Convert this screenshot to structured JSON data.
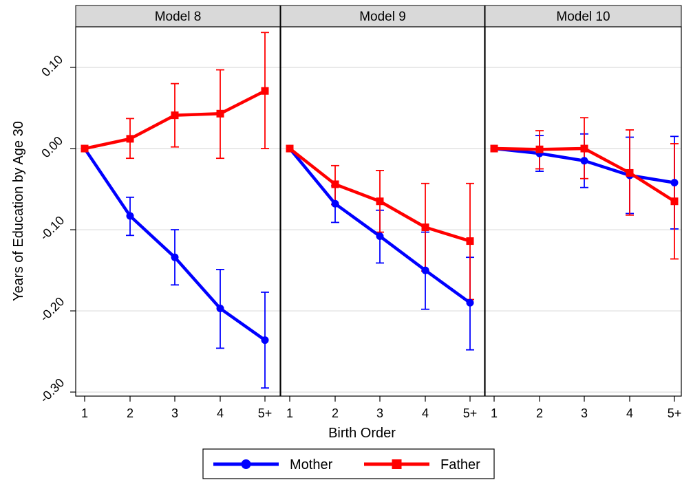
{
  "chart_data": {
    "type": "line",
    "ylabel": "Years of Education by Age 30",
    "xlabel": "Birth Order",
    "x_categories": [
      "1",
      "2",
      "3",
      "4",
      "5+"
    ],
    "y_ticks": [
      "0.10",
      "0.00",
      "-0.10",
      "-0.20",
      "-0.30"
    ],
    "y_tick_values": [
      0.1,
      0.0,
      -0.1,
      -0.2,
      -0.3
    ],
    "ylim": [
      -0.305,
      0.15
    ],
    "grid": true,
    "legend_position": "bottom",
    "colors": {
      "Mother": "#0000ff",
      "Father": "#ff0000"
    },
    "panels": [
      {
        "title": "Model 8",
        "series": [
          {
            "name": "Mother",
            "marker": "circle",
            "values": [
              0.0,
              -0.083,
              -0.134,
              -0.197,
              -0.236
            ],
            "ci_low": [
              0.0,
              -0.107,
              -0.168,
              -0.246,
              -0.295
            ],
            "ci_high": [
              0.0,
              -0.06,
              -0.1,
              -0.149,
              -0.177
            ]
          },
          {
            "name": "Father",
            "marker": "square",
            "values": [
              0.0,
              0.012,
              0.041,
              0.043,
              0.071
            ],
            "ci_low": [
              0.0,
              -0.012,
              0.002,
              -0.012,
              0.0
            ],
            "ci_high": [
              0.0,
              0.037,
              0.08,
              0.097,
              0.143
            ]
          }
        ]
      },
      {
        "title": "Model 9",
        "series": [
          {
            "name": "Mother",
            "marker": "circle",
            "values": [
              0.0,
              -0.068,
              -0.108,
              -0.15,
              -0.19
            ],
            "ci_low": [
              0.0,
              -0.091,
              -0.141,
              -0.198,
              -0.248
            ],
            "ci_high": [
              0.0,
              -0.046,
              -0.076,
              -0.103,
              -0.134
            ]
          },
          {
            "name": "Father",
            "marker": "square",
            "values": [
              0.0,
              -0.044,
              -0.065,
              -0.097,
              -0.114
            ],
            "ci_low": [
              0.0,
              -0.069,
              -0.103,
              -0.151,
              -0.186
            ],
            "ci_high": [
              0.0,
              -0.021,
              -0.027,
              -0.043,
              -0.043
            ]
          }
        ]
      },
      {
        "title": "Model 10",
        "series": [
          {
            "name": "Mother",
            "marker": "circle",
            "values": [
              0.0,
              -0.006,
              -0.015,
              -0.033,
              -0.042
            ],
            "ci_low": [
              0.0,
              -0.028,
              -0.048,
              -0.08,
              -0.099
            ],
            "ci_high": [
              0.0,
              0.016,
              0.018,
              0.014,
              0.015
            ]
          },
          {
            "name": "Father",
            "marker": "square",
            "values": [
              0.0,
              -0.001,
              0.0,
              -0.03,
              -0.065
            ],
            "ci_low": [
              0.0,
              -0.025,
              -0.037,
              -0.082,
              -0.136
            ],
            "ci_high": [
              0.0,
              0.022,
              0.038,
              0.023,
              0.006
            ]
          }
        ]
      }
    ],
    "legend": [
      {
        "label": "Mother",
        "marker": "circle"
      },
      {
        "label": "Father",
        "marker": "square"
      }
    ]
  }
}
